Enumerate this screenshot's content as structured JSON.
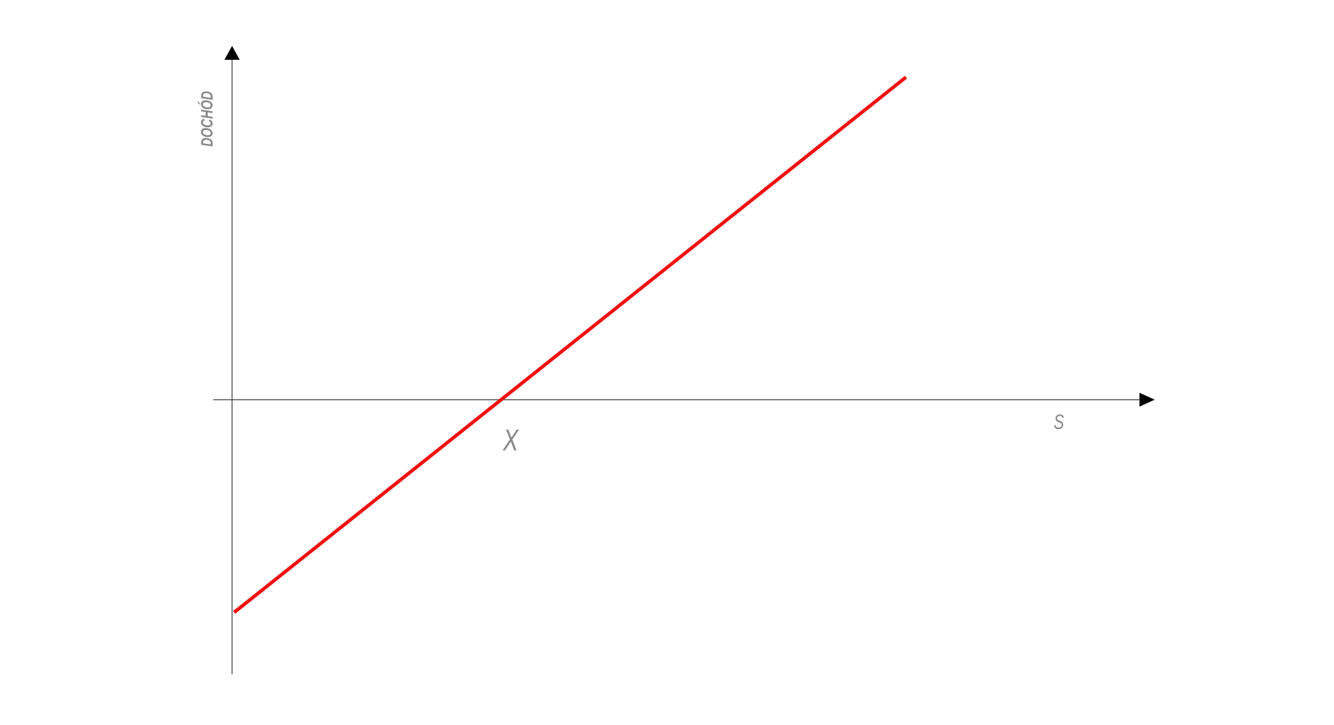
{
  "axes": {
    "y_label": "DOCHÓD",
    "x_label": "S"
  },
  "annotations": {
    "x_intercept": "X"
  }
}
